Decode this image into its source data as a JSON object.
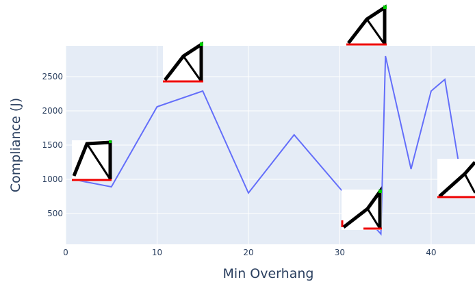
{
  "chart_data": {
    "type": "line",
    "x_label": "Min Overhang",
    "y_label": "Compliance (J)",
    "xlim": [
      0,
      44.8
    ],
    "xticks": [
      0,
      10,
      20,
      30,
      40
    ],
    "ylim": [
      50,
      2950
    ],
    "yticks": [
      500,
      1000,
      1500,
      2000,
      2500
    ],
    "grid": true,
    "series": [
      {
        "color": "#636efa",
        "x": [
          0.7,
          5,
          10,
          15,
          20,
          25,
          30,
          34.5,
          35,
          37.8,
          40,
          41.5,
          43
        ],
        "values": [
          1000,
          890,
          2060,
          2290,
          800,
          1650,
          870,
          200,
          2800,
          1150,
          2290,
          2460,
          1250
        ]
      }
    ]
  }
}
